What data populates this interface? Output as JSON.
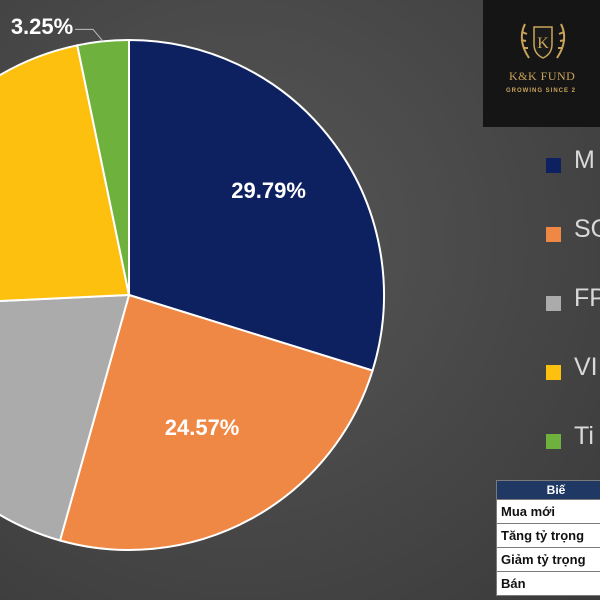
{
  "chart_data": {
    "type": "pie",
    "slices": [
      {
        "label": "M",
        "value": 29.79,
        "value_label": "29.79%",
        "color": "#0d2160"
      },
      {
        "label": "SO",
        "value": 24.57,
        "value_label": "24.57%",
        "color": "#ef8844"
      },
      {
        "label": "FP",
        "value": 19.9,
        "value_label": "",
        "color": "#ababab"
      },
      {
        "label": "VI",
        "value": 22.49,
        "value_label": "%",
        "color": "#fec00f"
      },
      {
        "label": "Ti",
        "value": 3.25,
        "value_label": "3.25%",
        "color": "#6fb13d"
      }
    ],
    "legend_position": "right",
    "start": "12 o'clock, clockwise"
  },
  "logo": {
    "monogram": "K",
    "name": "K&K FUND",
    "tagline": "GROWING SINCE 2"
  },
  "table": {
    "header": "Biế",
    "rows": [
      "Mua mới",
      "Tăng tỷ trọng",
      "Giảm tỷ trọng",
      "Bán"
    ]
  },
  "colors": {
    "background": "#4b4b4b",
    "table_header": "#1f3864",
    "logo_gold": "#c9a45a"
  }
}
